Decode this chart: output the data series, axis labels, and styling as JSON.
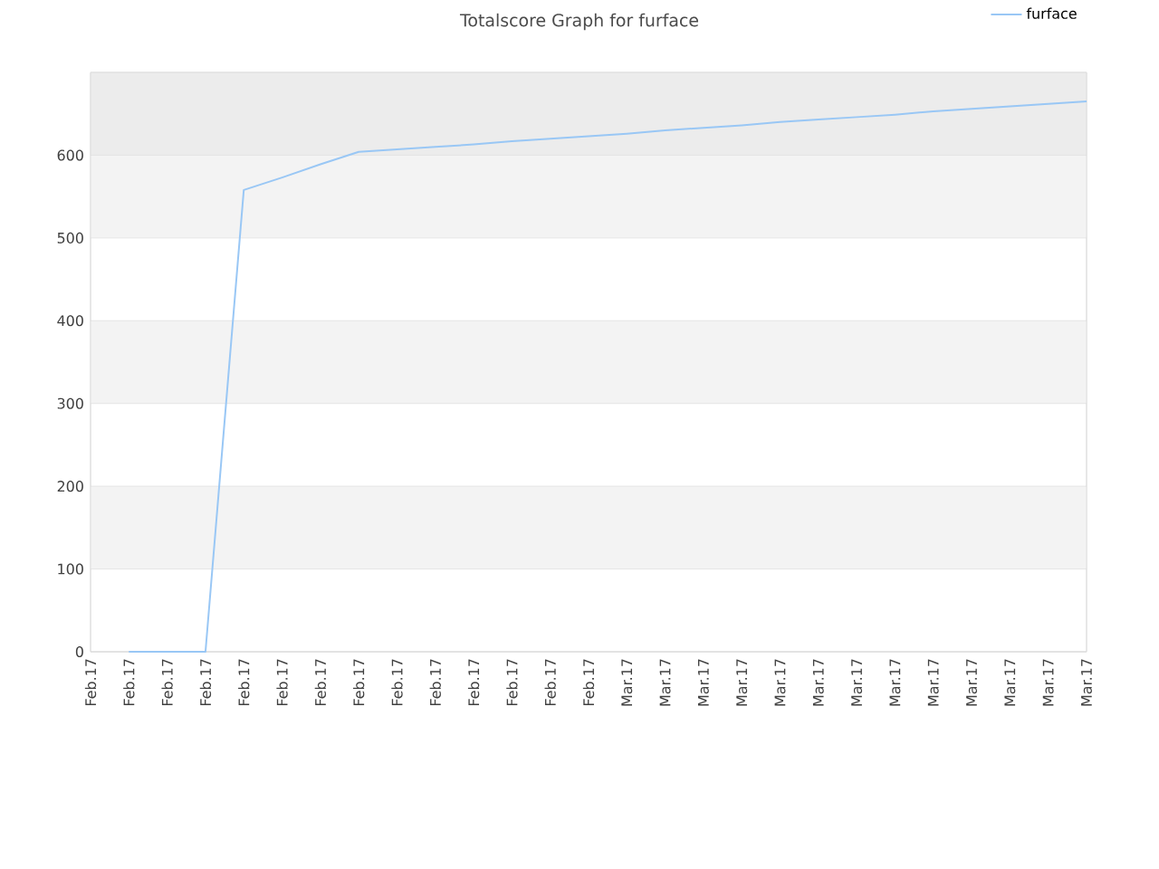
{
  "chart_data": {
    "type": "line",
    "title": "Totalscore Graph for furface",
    "categories": [
      "Feb.17",
      "Feb.17",
      "Feb.17",
      "Feb.17",
      "Feb.17",
      "Feb.17",
      "Feb.17",
      "Feb.17",
      "Feb.17",
      "Feb.17",
      "Feb.17",
      "Feb.17",
      "Feb.17",
      "Feb.17",
      "Mar.17",
      "Mar.17",
      "Mar.17",
      "Mar.17",
      "Mar.17",
      "Mar.17",
      "Mar.17",
      "Mar.17",
      "Mar.17",
      "Mar.17",
      "Mar.17",
      "Mar.17",
      "Mar.17"
    ],
    "series": [
      {
        "name": "furface",
        "color": "#99c7f5",
        "values": [
          null,
          0,
          0,
          0,
          558,
          573,
          589,
          604,
          607,
          610,
          613,
          617,
          620,
          623,
          626,
          630,
          633,
          636,
          640,
          643,
          646,
          649,
          653,
          656,
          659,
          662,
          665
        ]
      }
    ],
    "ylim": [
      0,
      700
    ],
    "yticks": [
      0,
      100,
      200,
      300,
      400,
      500,
      600
    ],
    "bands": [
      {
        "axis": "y",
        "from": 100,
        "to": 200,
        "color": "#f3f3f3"
      },
      {
        "axis": "y",
        "from": 300,
        "to": 400,
        "color": "#f3f3f3"
      },
      {
        "axis": "y",
        "from": 500,
        "to": 600,
        "color": "#f3f3f3"
      },
      {
        "axis": "y",
        "from": 600,
        "to": 700,
        "color": "#ececec"
      }
    ],
    "grid": "y",
    "legend": "top right",
    "marker": "none",
    "line_style": "solid"
  }
}
